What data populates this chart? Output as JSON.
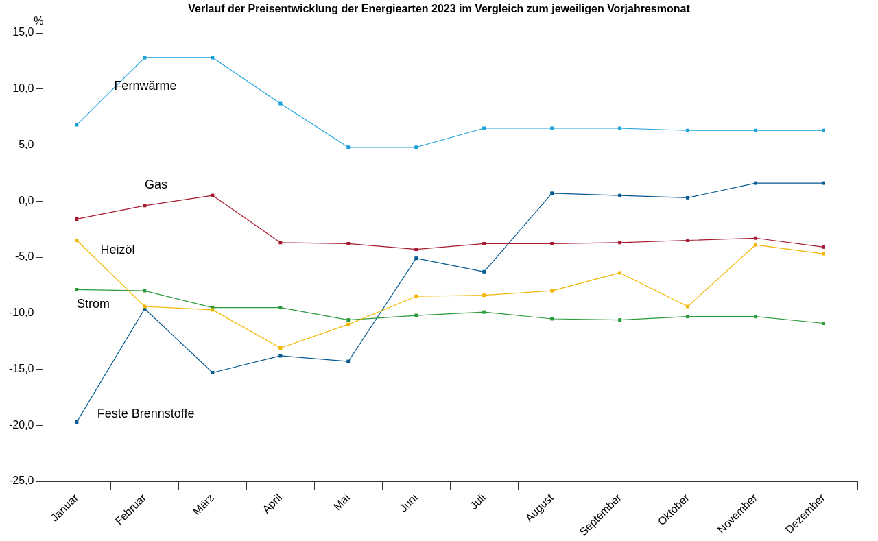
{
  "chart_data": {
    "type": "line",
    "title": "Verlauf der Preisentwicklung der Energiearten 2023 im Vergleich zum jeweiligen Vorjahresmonat",
    "ylabel": "%",
    "categories": [
      "Januar",
      "Februar",
      "März",
      "April",
      "Mai",
      "Juni",
      "Juli",
      "August",
      "September",
      "Oktober",
      "November",
      "Dezember"
    ],
    "series": [
      {
        "name": "Fernwärme",
        "color": "#1ba1db",
        "values": [
          6.8,
          12.8,
          12.8,
          8.7,
          4.8,
          4.8,
          6.5,
          6.5,
          6.5,
          6.3,
          6.3,
          6.3
        ]
      },
      {
        "name": "Gas",
        "color": "#a6192e",
        "values": [
          -1.6,
          -0.4,
          0.5,
          -3.7,
          -3.8,
          -4.3,
          -3.8,
          -3.8,
          -3.7,
          -3.5,
          -3.3,
          -4.1
        ]
      },
      {
        "name": "Heizöl",
        "color": "#f2b600",
        "values": [
          -3.5,
          -9.4,
          -9.7,
          -13.1,
          -11.0,
          -8.5,
          -8.4,
          -8.0,
          -6.4,
          -9.4,
          -3.9,
          -4.7
        ]
      },
      {
        "name": "Strom",
        "color": "#2a9a3a",
        "values": [
          -7.9,
          -8.0,
          -9.5,
          -9.5,
          -10.6,
          -10.2,
          -9.9,
          -10.5,
          -10.6,
          -10.3,
          -10.3,
          -10.9
        ]
      },
      {
        "name": "Feste Brennstoffe",
        "color": "#065a92",
        "values": [
          -19.7,
          -9.6,
          -15.3,
          -13.8,
          -14.3,
          -5.1,
          -6.3,
          0.7,
          0.5,
          0.3,
          1.6,
          1.6
        ]
      }
    ],
    "ylim": [
      -25,
      15
    ],
    "yticks": [
      {
        "value": -25,
        "label": "-25,0"
      },
      {
        "value": -20,
        "label": "-20,0"
      },
      {
        "value": -15,
        "label": "-15,0"
      },
      {
        "value": -10,
        "label": "-10,0"
      },
      {
        "value": -5,
        "label": "-5,0"
      },
      {
        "value": 0,
        "label": "0,0"
      },
      {
        "value": 5,
        "label": "5,0"
      },
      {
        "value": 10,
        "label": "10,0"
      },
      {
        "value": 15,
        "label": "15,0"
      }
    ],
    "grid": false,
    "legend": false,
    "marker": "square",
    "line_style": "solid"
  }
}
